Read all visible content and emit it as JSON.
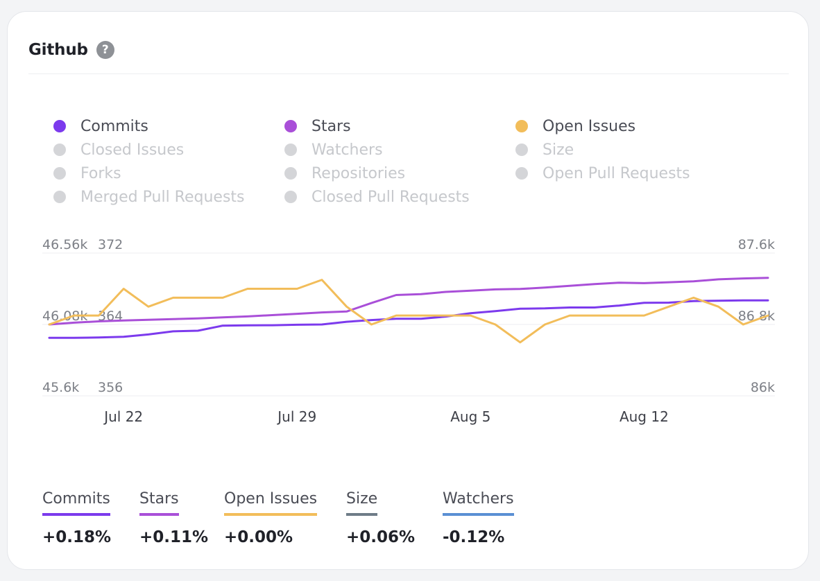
{
  "card": {
    "title": "Github",
    "help_icon": "question-circle-icon"
  },
  "legend": [
    {
      "label": "Commits",
      "active": true,
      "color": "#7c3aed"
    },
    {
      "label": "Stars",
      "active": true,
      "color": "#a94fd8"
    },
    {
      "label": "Open Issues",
      "active": true,
      "color": "#f2bd5a"
    },
    {
      "label": "Closed Issues",
      "active": false
    },
    {
      "label": "Watchers",
      "active": false
    },
    {
      "label": "Size",
      "active": false
    },
    {
      "label": "Forks",
      "active": false
    },
    {
      "label": "Repositories",
      "active": false
    },
    {
      "label": "Open Pull Requests",
      "active": false
    },
    {
      "label": "Merged Pull Requests",
      "active": false
    },
    {
      "label": "Closed Pull Requests",
      "active": false
    }
  ],
  "chart_data": {
    "type": "line",
    "x_tick_labels": [
      "Jul 22",
      "Jul 29",
      "Aug 5",
      "Aug 12"
    ],
    "x_tick_index": [
      3,
      10,
      17,
      24
    ],
    "axes": {
      "left1": {
        "ticks": [
          "46.56k",
          "46.08k",
          "45.6k"
        ],
        "min": 45600,
        "max": 46560
      },
      "left2": {
        "ticks": [
          "372",
          "364",
          "356"
        ],
        "min": 356,
        "max": 372
      },
      "right": {
        "ticks": [
          "87.6k",
          "86.8k",
          "86k"
        ],
        "min": 86000,
        "max": 87600
      }
    },
    "grid": true,
    "series": [
      {
        "name": "Commits",
        "color": "#7c3aed",
        "axis": "left1",
        "values": [
          45990,
          45990,
          45993,
          45997,
          46013,
          46034,
          46038,
          46072,
          46074,
          46075,
          46078,
          46080,
          46098,
          46110,
          46118,
          46118,
          46133,
          46156,
          46170,
          46186,
          46188,
          46194,
          46194,
          46207,
          46226,
          46227,
          46237,
          46240,
          46242,
          46242
        ]
      },
      {
        "name": "Stars",
        "color": "#a94fd8",
        "axis": "right",
        "values": [
          86800,
          86820,
          86835,
          86845,
          86852,
          86860,
          86868,
          86880,
          86890,
          86905,
          86920,
          86935,
          86945,
          87040,
          87130,
          87140,
          87165,
          87178,
          87193,
          87198,
          87213,
          87233,
          87253,
          87268,
          87263,
          87273,
          87283,
          87306,
          87316,
          87323
        ]
      },
      {
        "name": "Open Issues",
        "color": "#f2bd5a",
        "axis": "left2",
        "values": [
          364,
          365,
          365,
          368,
          366,
          367,
          367,
          367,
          368,
          368,
          368,
          369,
          366,
          364,
          365,
          365,
          365,
          365,
          364,
          362,
          364,
          365,
          365,
          365,
          365,
          366,
          367,
          366,
          364,
          365
        ]
      }
    ]
  },
  "summary": [
    {
      "label": "Commits",
      "value": "+0.18%",
      "color": "#7c3aed"
    },
    {
      "label": "Stars",
      "value": "+0.11%",
      "color": "#a94fd8"
    },
    {
      "label": "Open Issues",
      "value": "+0.00%",
      "color": "#f2bd5a"
    },
    {
      "label": "Size",
      "value": "+0.06%",
      "color": "#6e7c87"
    },
    {
      "label": "Watchers",
      "value": "-0.12%",
      "color": "#5a8fd4"
    }
  ]
}
